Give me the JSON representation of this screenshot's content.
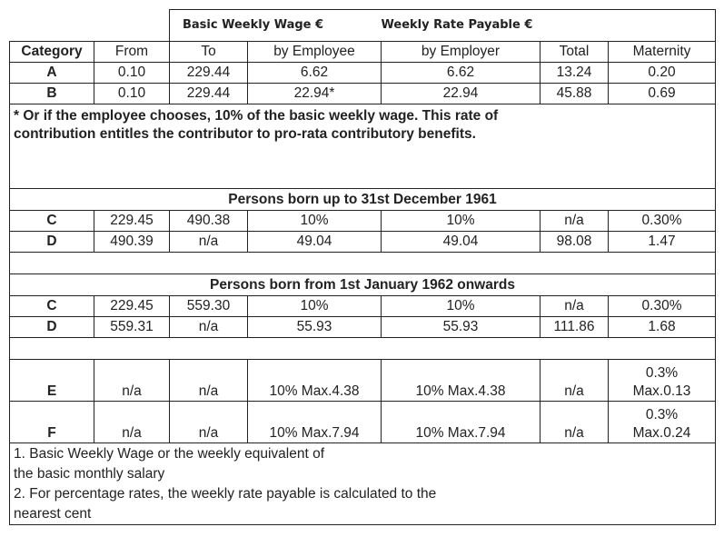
{
  "header": {
    "wage_group": "Basic Weekly Wage €",
    "rate_group": "Weekly Rate Payable €",
    "columns": [
      "Category",
      "From",
      "To",
      "by Employee",
      "by Employer",
      "Total",
      "Maternity"
    ]
  },
  "rows_ab": [
    [
      "A",
      "0.10",
      "229.44",
      "6.62",
      "6.62",
      "13.24",
      "0.20"
    ],
    [
      "B",
      "0.10",
      "229.44",
      "22.94*",
      "22.94",
      "45.88",
      "0.69"
    ]
  ],
  "note": [
    "* Or if the employee chooses, 10% of the basic weekly wage. This rate of",
    "contribution entitles the contributor to pro-rata contributory benefits."
  ],
  "sections": [
    {
      "title": "Persons born up to 31st December 1961",
      "rows": [
        [
          "C",
          "229.45",
          "490.38",
          "10%",
          "10%",
          "n/a",
          "0.30%"
        ],
        [
          "D",
          "490.39",
          "n/a",
          "49.04",
          "49.04",
          "98.08",
          "1.47"
        ]
      ]
    },
    {
      "title": "Persons born from 1st January 1962 onwards",
      "rows": [
        [
          "C",
          "229.45",
          "559.30",
          "10%",
          "10%",
          "n/a",
          "0.30%"
        ],
        [
          "D",
          "559.31",
          "n/a",
          "55.93",
          "55.93",
          "111.86",
          "1.68"
        ]
      ]
    }
  ],
  "rows_ef": [
    [
      "E",
      "n/a",
      "n/a",
      "10% Max.4.38",
      "10% Max.4.38",
      "n/a",
      [
        "0.3%",
        "Max.0.13"
      ]
    ],
    [
      "F",
      "n/a",
      "n/a",
      "10% Max.7.94",
      "10% Max.7.94",
      "n/a",
      [
        "0.3%",
        "Max.0.24"
      ]
    ]
  ],
  "footnotes": [
    "1. Basic Weekly Wage or the weekly equivalent of",
    "the basic monthly salary",
    "2. For percentage rates, the weekly rate payable is calculated to the",
    "nearest cent"
  ]
}
